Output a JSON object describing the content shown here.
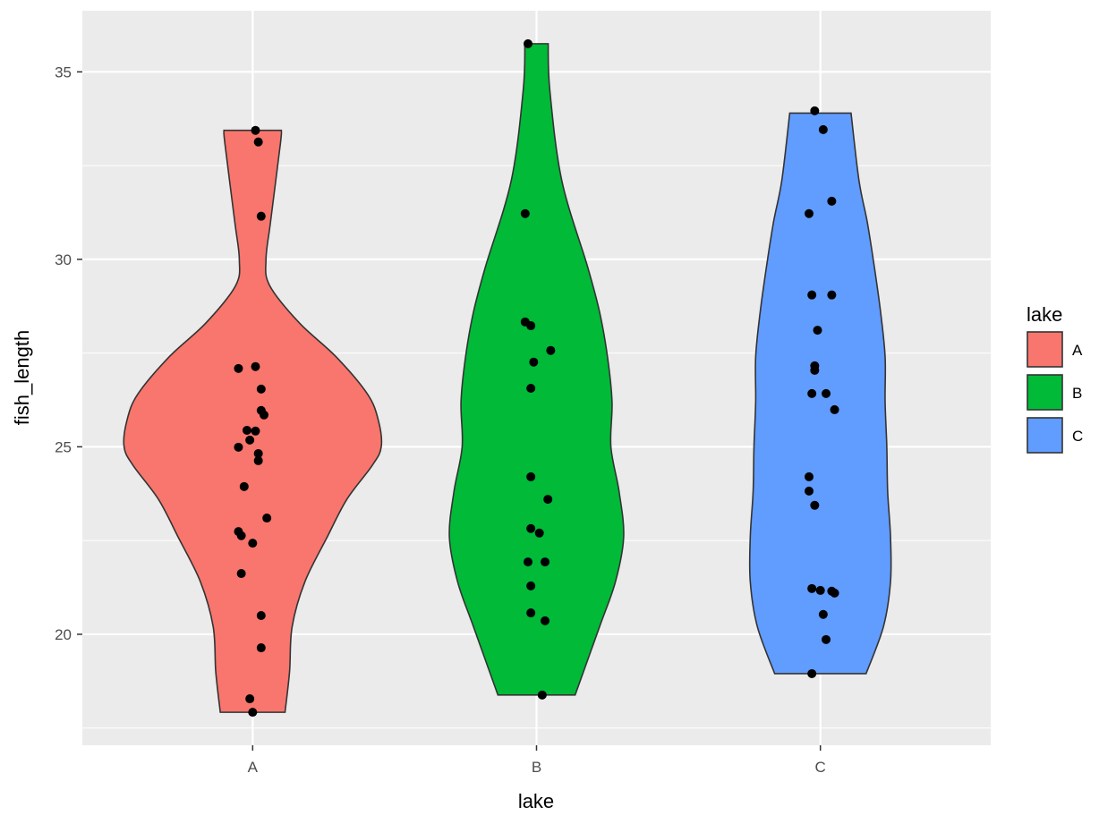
{
  "chart_data": {
    "type": "violin",
    "title": "",
    "xlabel": "lake",
    "ylabel": "fish_length",
    "categories": [
      "A",
      "B",
      "C"
    ],
    "xlim": [
      0.4,
      3.6
    ],
    "ylim": [
      17.04,
      36.63
    ],
    "yticks": [
      20,
      25,
      30,
      35
    ],
    "yticklabels": [
      "20",
      "25",
      "30",
      "35"
    ],
    "yminor": [
      17.5,
      22.5,
      27.5,
      32.5
    ],
    "grid": true,
    "legend": {
      "title": "lake",
      "position": "right",
      "entries": [
        "A",
        "B",
        "C"
      ]
    },
    "colors": {
      "A": "#F8766D",
      "B": "#00BA38",
      "C": "#619CFF",
      "panel": "#EBEBEB",
      "outline": "#333333",
      "point": "#000000"
    },
    "violins": [
      {
        "group": "A",
        "profile": [
          [
            33.44,
            0.101
          ],
          [
            33.1,
            0.098
          ],
          [
            31.0,
            0.063
          ],
          [
            30.0,
            0.047
          ],
          [
            29.3,
            0.06
          ],
          [
            28.3,
            0.165
          ],
          [
            27.4,
            0.294
          ],
          [
            26.4,
            0.405
          ],
          [
            25.7,
            0.443
          ],
          [
            25.0,
            0.453
          ],
          [
            24.5,
            0.421
          ],
          [
            23.6,
            0.332
          ],
          [
            22.6,
            0.263
          ],
          [
            21.4,
            0.184
          ],
          [
            20.2,
            0.139
          ],
          [
            19.0,
            0.13
          ],
          [
            17.92,
            0.114
          ]
        ]
      },
      {
        "group": "B",
        "profile": [
          [
            35.75,
            0.041
          ],
          [
            34.5,
            0.047
          ],
          [
            32.1,
            0.089
          ],
          [
            29.8,
            0.18
          ],
          [
            28.6,
            0.222
          ],
          [
            27.4,
            0.25
          ],
          [
            26.2,
            0.266
          ],
          [
            25.0,
            0.262
          ],
          [
            23.8,
            0.291
          ],
          [
            22.6,
            0.307
          ],
          [
            21.4,
            0.278
          ],
          [
            20.2,
            0.222
          ],
          [
            18.38,
            0.136
          ]
        ]
      },
      {
        "group": "C",
        "profile": [
          [
            33.9,
            0.108
          ],
          [
            32.1,
            0.136
          ],
          [
            31.0,
            0.165
          ],
          [
            29.8,
            0.19
          ],
          [
            28.6,
            0.212
          ],
          [
            27.4,
            0.228
          ],
          [
            26.2,
            0.228
          ],
          [
            25.0,
            0.234
          ],
          [
            23.8,
            0.237
          ],
          [
            22.6,
            0.247
          ],
          [
            21.4,
            0.247
          ],
          [
            20.2,
            0.222
          ],
          [
            18.95,
            0.161
          ]
        ]
      }
    ],
    "points": [
      {
        "group": "A",
        "data": [
          [
            0.01,
            33.44
          ],
          [
            0.02,
            33.13
          ],
          [
            0.03,
            31.15
          ],
          [
            -0.05,
            27.09
          ],
          [
            0.01,
            27.14
          ],
          [
            0.03,
            26.54
          ],
          [
            0.03,
            25.97
          ],
          [
            0.04,
            25.85
          ],
          [
            -0.02,
            25.44
          ],
          [
            0.01,
            25.42
          ],
          [
            -0.01,
            25.18
          ],
          [
            -0.05,
            24.99
          ],
          [
            0.02,
            24.82
          ],
          [
            0.02,
            24.63
          ],
          [
            -0.03,
            23.94
          ],
          [
            0.05,
            23.1
          ],
          [
            -0.05,
            22.74
          ],
          [
            -0.04,
            22.63
          ],
          [
            0.0,
            22.43
          ],
          [
            -0.04,
            21.62
          ],
          [
            0.03,
            20.5
          ],
          [
            0.03,
            19.64
          ],
          [
            -0.01,
            18.28
          ],
          [
            0.0,
            17.92
          ]
        ]
      },
      {
        "group": "B",
        "data": [
          [
            -0.03,
            35.75
          ],
          [
            -0.04,
            31.22
          ],
          [
            -0.04,
            28.33
          ],
          [
            -0.02,
            28.23
          ],
          [
            -0.01,
            27.26
          ],
          [
            0.05,
            27.57
          ],
          [
            -0.02,
            26.56
          ],
          [
            -0.02,
            24.2
          ],
          [
            0.04,
            23.6
          ],
          [
            -0.02,
            22.82
          ],
          [
            0.01,
            22.7
          ],
          [
            -0.03,
            21.93
          ],
          [
            0.03,
            21.93
          ],
          [
            -0.02,
            21.29
          ],
          [
            -0.02,
            20.57
          ],
          [
            0.03,
            20.36
          ],
          [
            0.02,
            18.38
          ]
        ]
      },
      {
        "group": "C",
        "data": [
          [
            -0.02,
            33.96
          ],
          [
            0.01,
            33.46
          ],
          [
            -0.04,
            31.22
          ],
          [
            0.04,
            31.55
          ],
          [
            -0.03,
            29.05
          ],
          [
            0.04,
            29.05
          ],
          [
            -0.01,
            28.11
          ],
          [
            -0.02,
            27.16
          ],
          [
            -0.02,
            27.04
          ],
          [
            -0.03,
            26.42
          ],
          [
            0.02,
            26.42
          ],
          [
            0.05,
            25.99
          ],
          [
            -0.04,
            24.2
          ],
          [
            -0.04,
            23.82
          ],
          [
            -0.02,
            23.44
          ],
          [
            -0.03,
            21.22
          ],
          [
            0.0,
            21.17
          ],
          [
            0.04,
            21.15
          ],
          [
            0.05,
            21.1
          ],
          [
            0.01,
            20.53
          ],
          [
            0.02,
            19.86
          ],
          [
            -0.03,
            18.95
          ]
        ]
      }
    ]
  }
}
